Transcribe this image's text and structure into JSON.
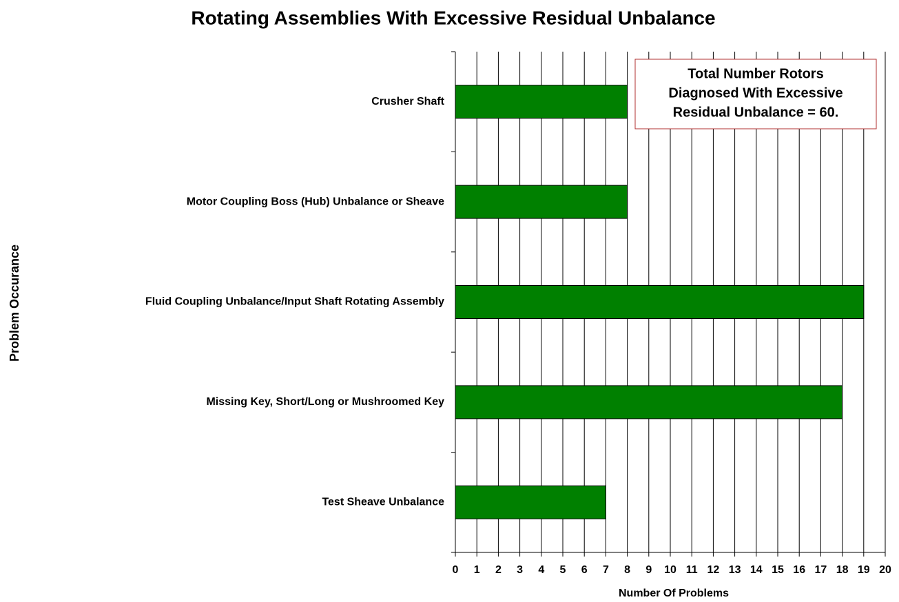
{
  "chart_data": {
    "type": "barh",
    "title": "Rotating Assemblies With Excessive Residual Unbalance",
    "x_label": "Number Of Problems",
    "y_label": "Problem Occurance",
    "categories": [
      "Crusher Shaft",
      "Motor Coupling Boss (Hub) Unbalance or Sheave",
      "Fluid Coupling Unbalance/Input Shaft Rotating Assembly",
      "Missing Key, Short/Long or Mushroomed Key",
      "Test Sheave Unbalance"
    ],
    "values": [
      8,
      8,
      19,
      18,
      7
    ],
    "color": "#008000",
    "xlim": [
      0,
      20
    ],
    "xticks": [
      0,
      1,
      2,
      3,
      4,
      5,
      6,
      7,
      8,
      9,
      10,
      11,
      12,
      13,
      14,
      15,
      16,
      17,
      18,
      19,
      20
    ],
    "grid": true,
    "annotation": [
      "Total Number Rotors",
      "Diagnosed With Excessive",
      "Residual Unbalance = 60."
    ]
  }
}
